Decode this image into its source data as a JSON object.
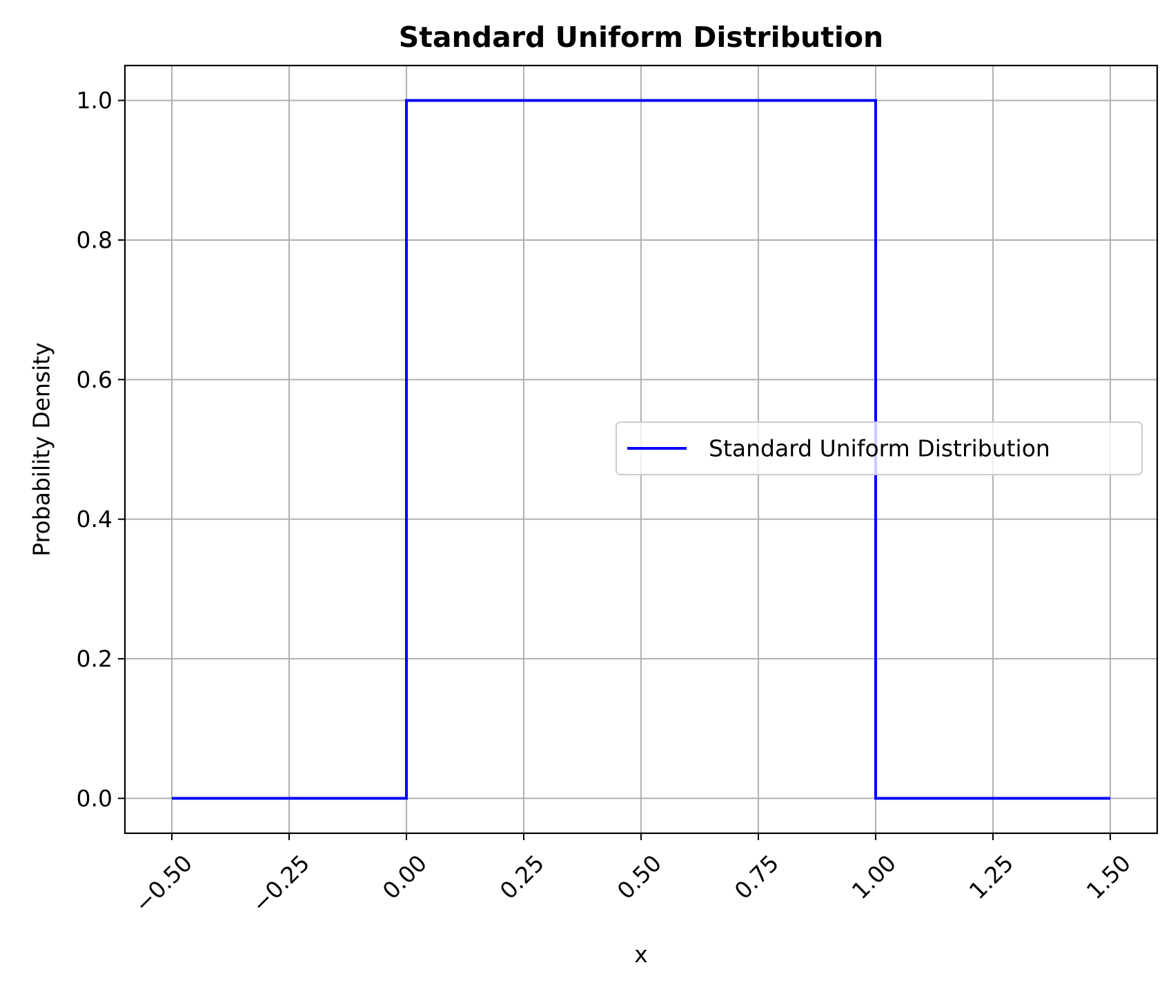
{
  "chart_data": {
    "type": "line",
    "title": "Standard Uniform Distribution",
    "xlabel": "x",
    "ylabel": "Probability Density",
    "xlim": [
      -0.6,
      1.6
    ],
    "ylim": [
      -0.05,
      1.05
    ],
    "x_ticks": [
      -0.5,
      -0.25,
      0.0,
      0.25,
      0.5,
      0.75,
      1.0,
      1.25,
      1.5
    ],
    "x_tick_labels": [
      "−0.50",
      "−0.25",
      "0.00",
      "0.25",
      "0.50",
      "0.75",
      "1.00",
      "1.25",
      "1.50"
    ],
    "y_ticks": [
      0.0,
      0.2,
      0.4,
      0.6,
      0.8,
      1.0
    ],
    "y_tick_labels": [
      "0.0",
      "0.2",
      "0.4",
      "0.6",
      "0.8",
      "1.0"
    ],
    "grid": true,
    "legend_position": "center-right",
    "series": [
      {
        "name": "Standard Uniform Distribution",
        "color": "#0000ff",
        "x": [
          -0.5,
          0.0,
          0.0,
          1.0,
          1.0,
          1.5
        ],
        "y": [
          0.0,
          0.0,
          1.0,
          1.0,
          0.0,
          0.0
        ]
      }
    ]
  }
}
